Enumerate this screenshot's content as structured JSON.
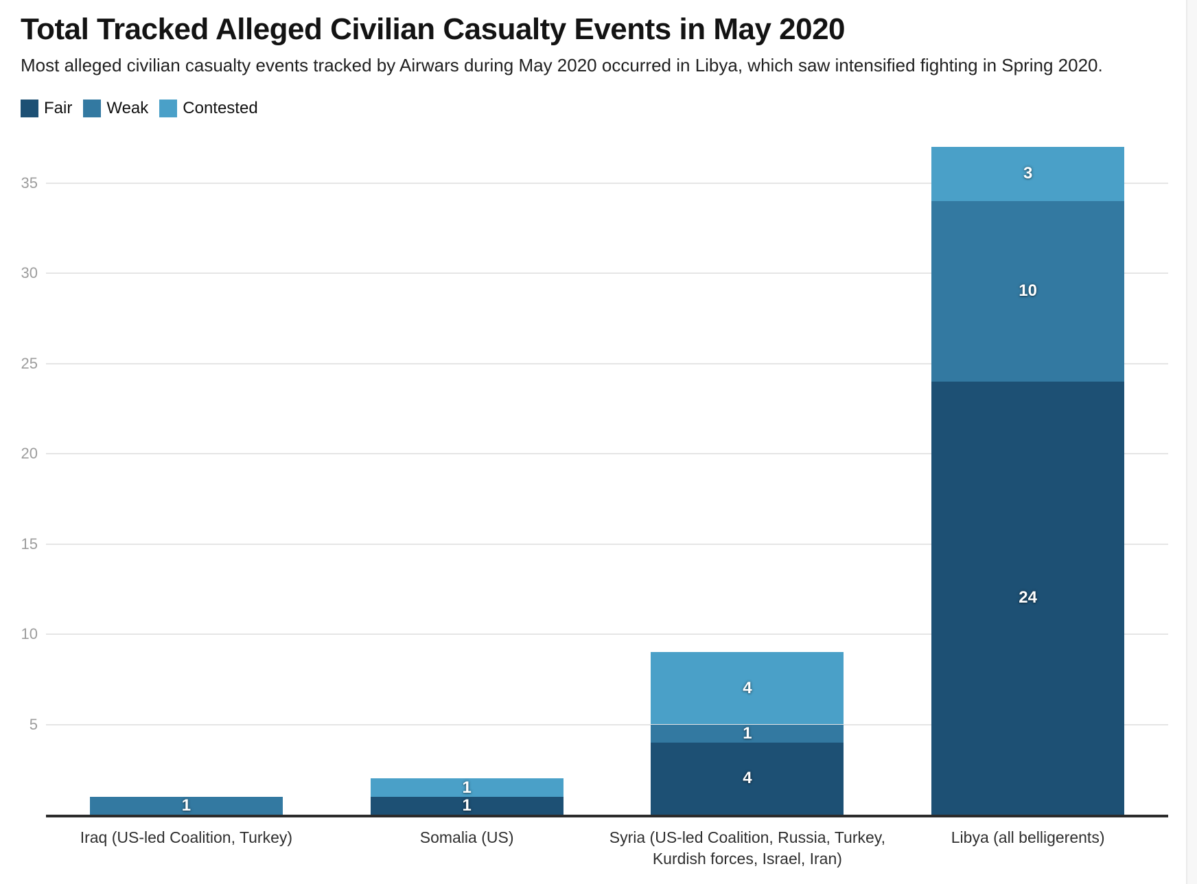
{
  "header": {
    "title": "Total Tracked Alleged Civilian Casualty Events in May 2020",
    "subtitle": "Most alleged civilian casualty events tracked by Airwars during May 2020 occurred in Libya, which saw intensified fighting in Spring 2020."
  },
  "legend": {
    "items": [
      {
        "label": "Fair",
        "color": "#1d5074"
      },
      {
        "label": "Weak",
        "color": "#3379a1"
      },
      {
        "label": "Contested",
        "color": "#4aa0c8"
      }
    ]
  },
  "chart_data": {
    "type": "bar",
    "stacked": true,
    "title": "Total Tracked Alleged Civilian Casualty Events in May 2020",
    "subtitle": "Most alleged civilian casualty events tracked by Airwars during May 2020 occurred in Libya, which saw intensified fighting in Spring 2020.",
    "categories": [
      "Iraq (US-led Coalition, Turkey)",
      "Somalia (US)",
      "Syria (US-led Coalition, Russia, Turkey, Kurdish forces, Israel, Iran)",
      "Libya (all belligerents)"
    ],
    "series": [
      {
        "name": "Fair",
        "color": "#1d5074",
        "values": [
          0,
          1,
          4,
          24
        ]
      },
      {
        "name": "Weak",
        "color": "#3379a1",
        "values": [
          1,
          0,
          1,
          10
        ]
      },
      {
        "name": "Contested",
        "color": "#4aa0c8",
        "values": [
          0,
          1,
          4,
          3
        ]
      }
    ],
    "totals": [
      1,
      2,
      9,
      37
    ],
    "xlabel": "",
    "ylabel": "",
    "yticks": [
      5,
      10,
      15,
      20,
      25,
      30,
      35
    ],
    "ylim": [
      0,
      37
    ],
    "grid": true,
    "legend_position": "top-left",
    "value_label_style": "white bold numerals centered inside each segment, hidden when value is 0"
  },
  "colors": {
    "background": "#ffffff",
    "gridline": "#e5e5e5",
    "axis_line": "#2b2b2b",
    "tick_label": "#9c9c9c",
    "category_label": "#2e2e2e",
    "title_text": "#131313"
  }
}
